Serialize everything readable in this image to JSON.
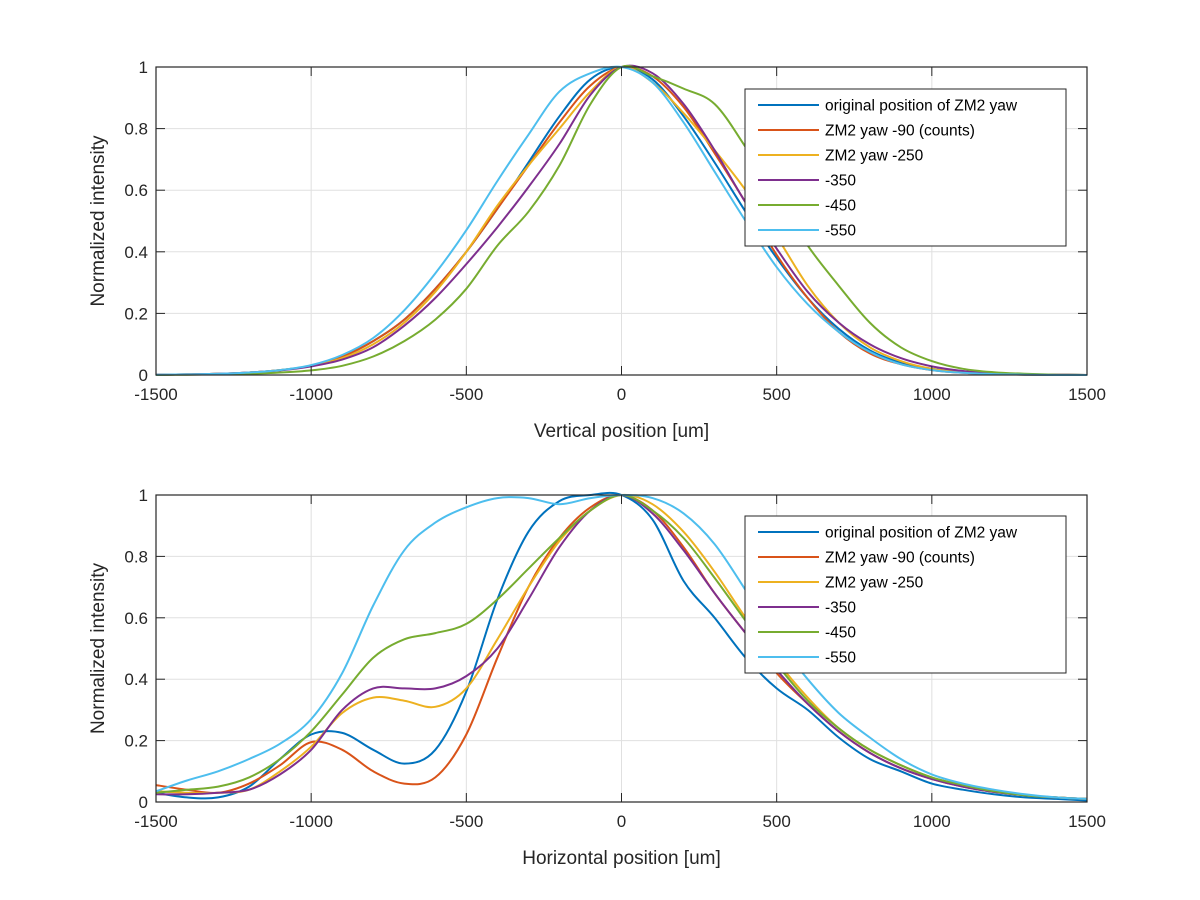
{
  "colors": {
    "series": [
      "#0072BD",
      "#D95319",
      "#EDB120",
      "#7E2F8E",
      "#77AC30",
      "#4DBEEE"
    ],
    "grid": "#e0e0e0",
    "axis": "#262626"
  },
  "chart_data": [
    {
      "type": "line",
      "title": "",
      "xlabel": "Vertical position [um]",
      "ylabel": "Normalized intensity",
      "xlim": [
        -1500,
        1500
      ],
      "ylim": [
        0,
        1
      ],
      "grid": true,
      "legend_position": "top-right",
      "xticks": [
        "-1500",
        "-1000",
        "-500",
        "0",
        "500",
        "1000",
        "1500"
      ],
      "xtick_values": [
        -1500,
        -1000,
        -500,
        0,
        500,
        1000,
        1500
      ],
      "yticks": [
        "0",
        "0.2",
        "0.4",
        "0.6",
        "0.8",
        "1"
      ],
      "ytick_values": [
        0,
        0.2,
        0.4,
        0.6,
        0.8,
        1
      ],
      "x": [
        -1500,
        -1400,
        -1300,
        -1200,
        -1100,
        -1000,
        -900,
        -800,
        -700,
        -600,
        -500,
        -400,
        -300,
        -200,
        -100,
        0,
        100,
        200,
        300,
        400,
        500,
        600,
        700,
        800,
        900,
        1000,
        1100,
        1200,
        1300,
        1400,
        1500
      ],
      "series": [
        {
          "name": "original position of ZM2 yaw",
          "values": [
            0.001,
            0.002,
            0.004,
            0.008,
            0.016,
            0.03,
            0.06,
            0.11,
            0.18,
            0.28,
            0.4,
            0.54,
            0.69,
            0.84,
            0.96,
            1.0,
            0.96,
            0.84,
            0.69,
            0.53,
            0.38,
            0.25,
            0.15,
            0.08,
            0.04,
            0.02,
            0.01,
            0.004,
            0.002,
            0.001,
            0.0
          ]
        },
        {
          "name": "ZM2 yaw -90 (counts)",
          "values": [
            0.001,
            0.002,
            0.004,
            0.008,
            0.016,
            0.03,
            0.06,
            0.11,
            0.18,
            0.28,
            0.4,
            0.54,
            0.68,
            0.82,
            0.94,
            1.0,
            0.97,
            0.87,
            0.72,
            0.56,
            0.39,
            0.25,
            0.14,
            0.07,
            0.035,
            0.016,
            0.007,
            0.003,
            0.001,
            0.0,
            0.0
          ]
        },
        {
          "name": "ZM2 yaw -250",
          "values": [
            0.001,
            0.002,
            0.004,
            0.008,
            0.016,
            0.03,
            0.055,
            0.1,
            0.17,
            0.27,
            0.4,
            0.55,
            0.68,
            0.8,
            0.92,
            1.0,
            0.95,
            0.85,
            0.73,
            0.6,
            0.45,
            0.29,
            0.17,
            0.09,
            0.045,
            0.02,
            0.009,
            0.004,
            0.002,
            0.001,
            0.0
          ]
        },
        {
          "name": "-350",
          "values": [
            0.001,
            0.002,
            0.004,
            0.008,
            0.015,
            0.028,
            0.05,
            0.09,
            0.16,
            0.25,
            0.36,
            0.48,
            0.61,
            0.75,
            0.91,
            1.0,
            0.98,
            0.88,
            0.73,
            0.56,
            0.41,
            0.27,
            0.17,
            0.1,
            0.055,
            0.028,
            0.013,
            0.006,
            0.002,
            0.001,
            0.0
          ]
        },
        {
          "name": "-450",
          "values": [
            0.0,
            0.001,
            0.002,
            0.004,
            0.008,
            0.015,
            0.03,
            0.06,
            0.11,
            0.18,
            0.28,
            0.42,
            0.53,
            0.68,
            0.88,
            1.0,
            0.97,
            0.93,
            0.88,
            0.74,
            0.58,
            0.42,
            0.29,
            0.17,
            0.09,
            0.045,
            0.02,
            0.009,
            0.004,
            0.001,
            0.0
          ]
        },
        {
          "name": "-550",
          "values": [
            0.001,
            0.002,
            0.004,
            0.008,
            0.016,
            0.032,
            0.065,
            0.12,
            0.21,
            0.33,
            0.47,
            0.63,
            0.78,
            0.92,
            0.98,
            1.0,
            0.95,
            0.82,
            0.66,
            0.5,
            0.35,
            0.23,
            0.14,
            0.075,
            0.035,
            0.016,
            0.007,
            0.003,
            0.001,
            0.0,
            0.0
          ]
        }
      ]
    },
    {
      "type": "line",
      "title": "",
      "xlabel": "Horizontal position [um]",
      "ylabel": "Normalized intensity",
      "xlim": [
        -1500,
        1500
      ],
      "ylim": [
        0,
        1
      ],
      "grid": true,
      "legend_position": "top-right",
      "xticks": [
        "-1500",
        "-1000",
        "-500",
        "0",
        "500",
        "1000",
        "1500"
      ],
      "xtick_values": [
        -1500,
        -1000,
        -500,
        0,
        500,
        1000,
        1500
      ],
      "yticks": [
        "0",
        "0.2",
        "0.4",
        "0.6",
        "0.8",
        "1"
      ],
      "ytick_values": [
        0,
        0.2,
        0.4,
        0.6,
        0.8,
        1
      ],
      "x": [
        -1500,
        -1400,
        -1300,
        -1200,
        -1100,
        -1000,
        -900,
        -800,
        -700,
        -600,
        -500,
        -400,
        -300,
        -200,
        -100,
        0,
        100,
        200,
        300,
        400,
        500,
        600,
        700,
        800,
        900,
        1000,
        1100,
        1200,
        1300,
        1400,
        1500
      ],
      "series": [
        {
          "name": "original position of ZM2 yaw",
          "values": [
            0.03,
            0.015,
            0.015,
            0.05,
            0.14,
            0.22,
            0.225,
            0.17,
            0.125,
            0.17,
            0.36,
            0.66,
            0.88,
            0.98,
            1.0,
            1.0,
            0.92,
            0.72,
            0.6,
            0.47,
            0.37,
            0.3,
            0.21,
            0.14,
            0.1,
            0.06,
            0.04,
            0.025,
            0.015,
            0.01,
            0.005
          ]
        },
        {
          "name": "ZM2 yaw -90 (counts)",
          "values": [
            0.055,
            0.04,
            0.03,
            0.06,
            0.12,
            0.195,
            0.17,
            0.1,
            0.06,
            0.08,
            0.22,
            0.47,
            0.7,
            0.86,
            0.96,
            1.0,
            0.95,
            0.83,
            0.68,
            0.55,
            0.42,
            0.32,
            0.23,
            0.16,
            0.11,
            0.075,
            0.05,
            0.033,
            0.022,
            0.015,
            0.01
          ]
        },
        {
          "name": "ZM2 yaw -250",
          "values": [
            0.035,
            0.03,
            0.03,
            0.04,
            0.1,
            0.18,
            0.29,
            0.34,
            0.33,
            0.31,
            0.37,
            0.53,
            0.7,
            0.85,
            0.95,
            1.0,
            0.97,
            0.88,
            0.75,
            0.6,
            0.46,
            0.34,
            0.24,
            0.17,
            0.12,
            0.08,
            0.055,
            0.035,
            0.022,
            0.015,
            0.01
          ]
        },
        {
          "name": "-350",
          "values": [
            0.025,
            0.025,
            0.03,
            0.04,
            0.09,
            0.17,
            0.3,
            0.37,
            0.37,
            0.37,
            0.41,
            0.5,
            0.66,
            0.83,
            0.95,
            1.0,
            0.94,
            0.82,
            0.68,
            0.55,
            0.43,
            0.32,
            0.23,
            0.16,
            0.11,
            0.075,
            0.05,
            0.033,
            0.022,
            0.015,
            0.01
          ]
        },
        {
          "name": "-450",
          "values": [
            0.03,
            0.04,
            0.05,
            0.08,
            0.14,
            0.23,
            0.35,
            0.47,
            0.53,
            0.55,
            0.58,
            0.66,
            0.76,
            0.86,
            0.95,
            1.0,
            0.95,
            0.86,
            0.73,
            0.59,
            0.45,
            0.33,
            0.24,
            0.17,
            0.12,
            0.08,
            0.055,
            0.035,
            0.022,
            0.015,
            0.01
          ]
        },
        {
          "name": "-550",
          "values": [
            0.035,
            0.07,
            0.1,
            0.14,
            0.19,
            0.27,
            0.42,
            0.64,
            0.82,
            0.91,
            0.96,
            0.99,
            0.99,
            0.97,
            0.99,
            1.0,
            0.99,
            0.94,
            0.84,
            0.69,
            0.53,
            0.4,
            0.29,
            0.21,
            0.14,
            0.09,
            0.06,
            0.04,
            0.025,
            0.015,
            0.01
          ]
        }
      ]
    }
  ]
}
